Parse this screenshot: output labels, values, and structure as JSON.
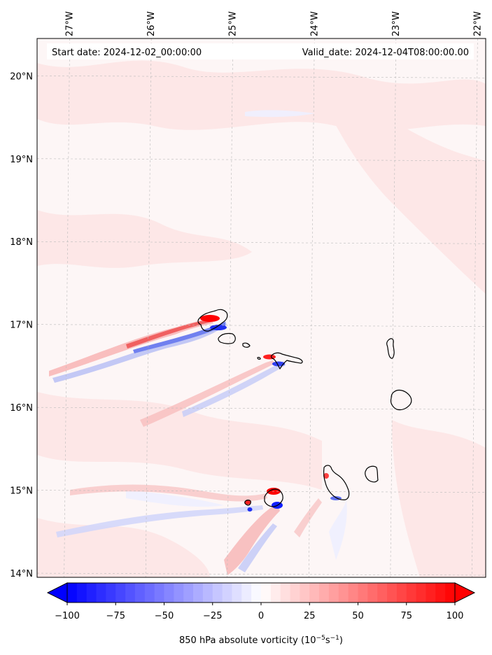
{
  "map": {
    "start_label": "Start date: 2024-12-02_00:00:00",
    "valid_label": "Valid_date: 2024-12-04T08:00:00.00",
    "lon_labels": [
      "27°W",
      "26°W",
      "25°W",
      "24°W",
      "23°W",
      "22°W"
    ],
    "lat_labels": [
      "20°N",
      "19°N",
      "18°N",
      "17°N",
      "16°N",
      "15°N",
      "14°N"
    ],
    "lon_values": [
      -27,
      -26,
      -25,
      -24,
      -23,
      -22
    ],
    "lat_values": [
      20,
      19,
      18,
      17,
      16,
      15,
      14
    ],
    "lon_range": [
      -27.4,
      -21.9
    ],
    "lat_range": [
      13.95,
      20.45
    ],
    "field": "850 hPa absolute vorticity",
    "colormap": "bwr",
    "grid": true
  },
  "colorbar": {
    "ticks": [
      "−100",
      "−75",
      "−50",
      "−25",
      "0",
      "25",
      "50",
      "75",
      "100"
    ],
    "tick_values": [
      -100,
      -75,
      -50,
      -25,
      0,
      25,
      50,
      75,
      100
    ],
    "range": [
      -100,
      100
    ],
    "extend": "both",
    "label_main": "850 hPa absolute vorticity (10",
    "label_exp1": "−5",
    "label_mid": "s",
    "label_exp2": "−1",
    "label_end": ")"
  }
}
